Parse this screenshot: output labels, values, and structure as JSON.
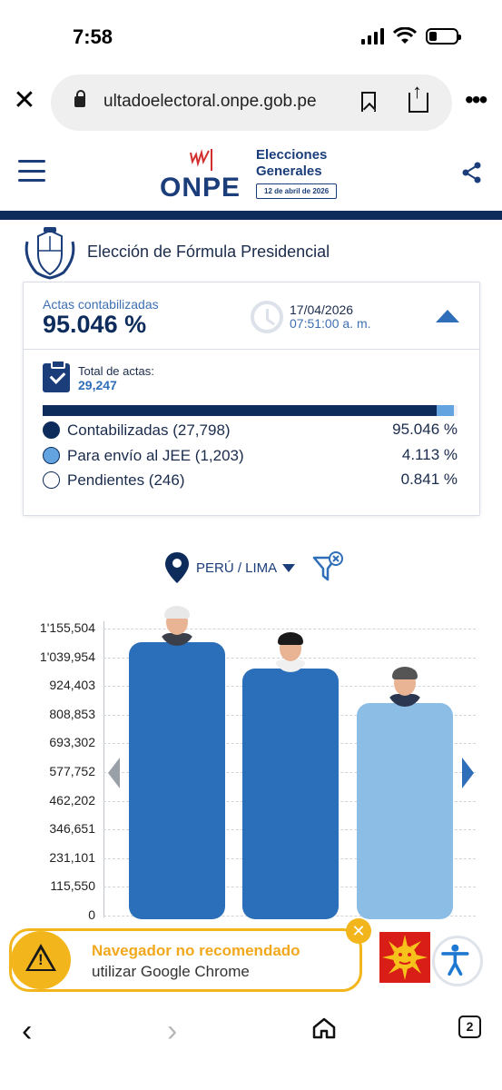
{
  "status_bar": {
    "time": "7:58"
  },
  "browser": {
    "url": "ultadoelectoral.onpe.gob.pe",
    "tab_count": "2"
  },
  "header": {
    "logo_text": "ONPE",
    "title_line1": "Elecciones",
    "title_line2": "Generales",
    "date_badge": "12 de abril de 2026"
  },
  "section": {
    "title": "Elección de Fórmula Presidencial"
  },
  "summary": {
    "actas_label": "Actas contabilizadas",
    "actas_value": "95.046 %",
    "updated_date": "17/04/2026",
    "updated_time": "07:51:00 a. m.",
    "total_label": "Total de actas:",
    "total_value": "29,247",
    "progress": [
      {
        "name": "contabilizadas",
        "fraction": 0.95046,
        "color": "#0d2c5c"
      },
      {
        "name": "jee",
        "fraction": 0.04113,
        "color": "#63a3e0"
      },
      {
        "name": "pendientes",
        "fraction": 0.00841,
        "color": "#eef1f5"
      }
    ],
    "legend": [
      {
        "label": "Contabilizadas (27,798)",
        "percent": "95.046 %",
        "color": "#0d2c5c"
      },
      {
        "label": "Para envío al JEE (1,203)",
        "percent": "4.113 %",
        "color": "#63a3e0"
      },
      {
        "label": "Pendientes (246)",
        "percent": "0.841 %",
        "color": "#ffffff"
      }
    ]
  },
  "filter": {
    "location": "PERÚ / LIMA"
  },
  "chart_data": {
    "type": "bar",
    "categories": [
      "",
      "",
      ""
    ],
    "values": [
      1100000,
      995000,
      855000
    ],
    "ylim": [
      0,
      1155504
    ],
    "ticks": [
      "1'155,504",
      "1'039,954",
      "924,403",
      "808,853",
      "693,302",
      "577,752",
      "462,202",
      "346,651",
      "231,101",
      "115,550",
      "0"
    ],
    "colors": [
      "#2b6fba",
      "#2b6fba",
      "#8bbde5"
    ],
    "grid": true,
    "legend": "none"
  },
  "warning": {
    "title": "Navegador no recomendado",
    "subtitle": "utilizar Google Chrome"
  }
}
